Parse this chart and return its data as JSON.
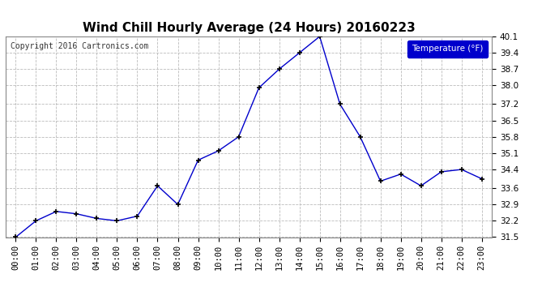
{
  "title": "Wind Chill Hourly Average (24 Hours) 20160223",
  "copyright_text": "Copyright 2016 Cartronics.com",
  "legend_label": "Temperature (°F)",
  "hours": [
    "00:00",
    "01:00",
    "02:00",
    "03:00",
    "04:00",
    "05:00",
    "06:00",
    "07:00",
    "08:00",
    "09:00",
    "10:00",
    "11:00",
    "12:00",
    "13:00",
    "14:00",
    "15:00",
    "16:00",
    "17:00",
    "18:00",
    "19:00",
    "20:00",
    "21:00",
    "22:00",
    "23:00"
  ],
  "values": [
    31.5,
    32.2,
    32.6,
    32.5,
    32.3,
    32.2,
    32.4,
    33.7,
    32.9,
    34.8,
    35.2,
    35.8,
    37.9,
    38.7,
    39.4,
    40.1,
    37.2,
    35.8,
    33.9,
    34.2,
    33.7,
    34.3,
    34.4,
    34.0
  ],
  "line_color": "#0000cc",
  "marker_color": "#000000",
  "background_color": "#ffffff",
  "plot_bg_color": "#ffffff",
  "grid_color": "#bbbbbb",
  "ylim": [
    31.5,
    40.1
  ],
  "yticks": [
    31.5,
    32.2,
    32.9,
    33.6,
    34.4,
    35.1,
    35.8,
    36.5,
    37.2,
    38.0,
    38.7,
    39.4,
    40.1
  ],
  "title_fontsize": 11,
  "tick_fontsize": 7.5,
  "copyright_fontsize": 7,
  "legend_bg": "#0000cc",
  "legend_text_color": "#ffffff"
}
